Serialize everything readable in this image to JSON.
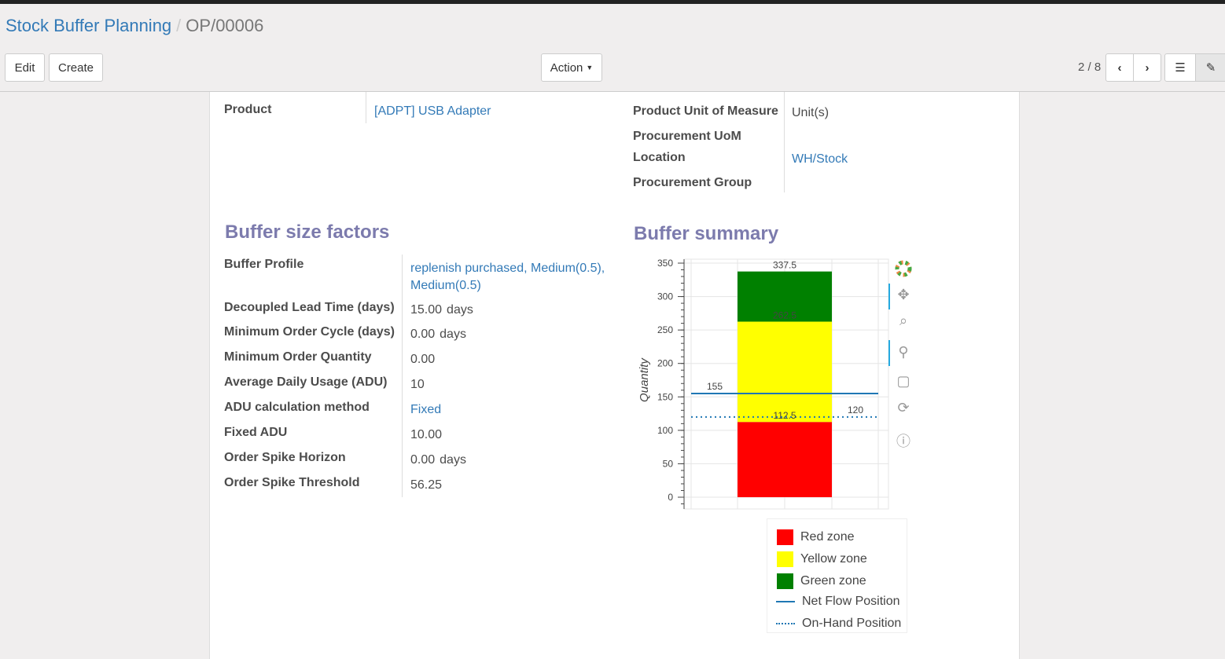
{
  "breadcrumb": {
    "parent": "Stock Buffer Planning",
    "current": "OP/00006"
  },
  "toolbar": {
    "edit": "Edit",
    "create": "Create",
    "action": "Action",
    "pager": "2 / 8"
  },
  "fields_top_left": [
    {
      "label": "Product",
      "value": "[ADPT] USB Adapter"
    }
  ],
  "fields_top_right": [
    {
      "label": "Product Unit of Measure",
      "value": "Unit(s)"
    },
    {
      "label": "Procurement UoM",
      "value": ""
    },
    {
      "label": "Location",
      "value": "WH/Stock"
    },
    {
      "label": "Procurement Group",
      "value": ""
    }
  ],
  "factors": {
    "title": "Buffer size factors",
    "rows": [
      {
        "label": "Buffer Profile",
        "value": "replenish purchased, Medium(0.5),",
        "value2": "Medium(0.5)"
      },
      {
        "label": "Decoupled Lead Time (days)",
        "value": "15.00",
        "unit": "days"
      },
      {
        "label": "Minimum Order Cycle (days)",
        "value": "0.00",
        "unit": "days"
      },
      {
        "label": "Minimum Order Quantity",
        "value": "0.00"
      },
      {
        "label": "Average Daily Usage (ADU)",
        "value": "10"
      },
      {
        "label": "ADU calculation method",
        "value": "Fixed"
      },
      {
        "label": "Fixed ADU",
        "value": "10.00"
      },
      {
        "label": "Order Spike Horizon",
        "value": "0.00",
        "unit": "days"
      },
      {
        "label": "Order Spike Threshold",
        "value": "56.25"
      }
    ]
  },
  "summary": {
    "title": "Buffer summary"
  },
  "chart_data": {
    "type": "bar",
    "ylabel": "Quantity",
    "ylim": [
      0,
      350
    ],
    "yticks": [
      0,
      50,
      100,
      150,
      200,
      250,
      300,
      350
    ],
    "grid": true,
    "stacked_zones": [
      {
        "name": "Red zone",
        "from": 0,
        "to": 112.5,
        "color": "#ff0000",
        "label": "112.5"
      },
      {
        "name": "Yellow zone",
        "from": 112.5,
        "to": 262.5,
        "color": "#ffff00",
        "label": "262.5"
      },
      {
        "name": "Green zone",
        "from": 262.5,
        "to": 337.5,
        "color": "#008000",
        "label": "337.5"
      }
    ],
    "lines": [
      {
        "name": "Net Flow Position",
        "value": 155,
        "label": "155",
        "style": "solid",
        "color": "#1f77b4"
      },
      {
        "name": "On-Hand Position",
        "value": 120,
        "label": "120",
        "style": "dotted",
        "color": "#1f77b4"
      }
    ],
    "legend": "below"
  }
}
